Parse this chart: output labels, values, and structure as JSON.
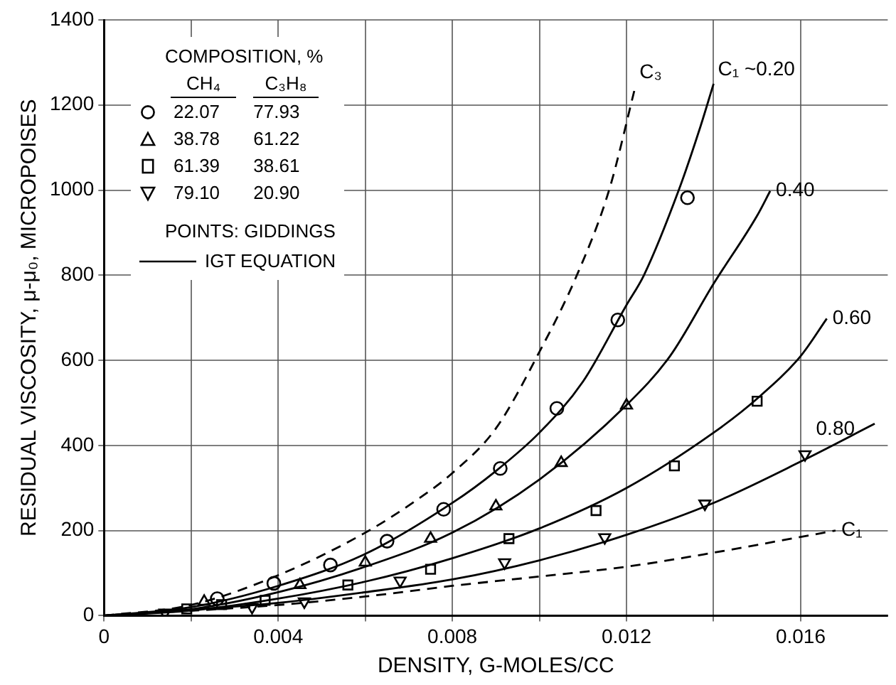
{
  "chart_data": {
    "type": "scatter",
    "xlabel": "DENSITY, G-MOLES/CC",
    "ylabel": "RESIDUAL VISCOSITY, μ-μ₀, MICROPOISES",
    "legend_title": "COMPOSITION, %",
    "annotations": [
      "CH₄",
      "C₃H₈",
      "POINTS: GIDDINGS",
      "IGT EQUATION"
    ],
    "xlim": [
      0,
      0.018
    ],
    "xticks": [
      0,
      {
        "value": 0.002,
        "label": null
      },
      0.004,
      {
        "value": 0.006,
        "label": null
      },
      0.008,
      {
        "value": 0.01,
        "label": null
      },
      0.012,
      {
        "value": 0.014,
        "label": null
      },
      0.016
    ],
    "ylim": [
      0,
      1400
    ],
    "yticks": [
      0,
      200,
      400,
      600,
      800,
      1000,
      1200,
      1400
    ],
    "grid": true,
    "legend": "top left",
    "series": [
      {
        "name": "22.07 77.93",
        "type": "scatter",
        "marker": "circle",
        "color": "#000000",
        "x": [
          0.0026,
          0.0039,
          0.0052,
          0.0065,
          0.0078,
          0.0091,
          0.0104,
          0.0118,
          0.0134
        ],
        "values": [
          40,
          76,
          119,
          175,
          250,
          346,
          487,
          695,
          982
        ]
      },
      {
        "name": "38.78 61.22",
        "type": "scatter",
        "marker": "triangle",
        "color": "#000000",
        "x": [
          0.0023,
          0.0045,
          0.006,
          0.0075,
          0.009,
          0.0105,
          0.012
        ],
        "values": [
          33,
          72,
          125,
          181,
          257,
          359,
          494
        ]
      },
      {
        "name": "61.39 38.61",
        "type": "scatter",
        "marker": "square",
        "color": "#000000",
        "x": [
          0.0019,
          0.0027,
          0.0037,
          0.0056,
          0.0075,
          0.0093,
          0.0113,
          0.0131,
          0.015
        ],
        "values": [
          16,
          26,
          36,
          72,
          109,
          181,
          247,
          352,
          504
        ]
      },
      {
        "name": "79.10 20.90",
        "type": "scatter",
        "marker": "triangle-down",
        "color": "#000000",
        "x": [
          0.0014,
          0.0034,
          0.0046,
          0.0068,
          0.0092,
          0.0115,
          0.0138,
          0.0161
        ],
        "values": [
          7,
          20,
          33,
          82,
          125,
          184,
          263,
          379
        ]
      },
      {
        "name": "C₁ ~0.20",
        "type": "line",
        "line_style": "solid",
        "marker": "none",
        "color": "#000000",
        "x": [
          0,
          0.002,
          0.004,
          0.006,
          0.008,
          0.009,
          0.01,
          0.011,
          0.012,
          0.0124,
          0.0132,
          0.0137,
          0.014
        ],
        "values": [
          0,
          20,
          70,
          145,
          265,
          340,
          430,
          550,
          730,
          800,
          1000,
          1150,
          1250
        ]
      },
      {
        "name": "0.40",
        "type": "line",
        "line_style": "solid",
        "marker": "none",
        "color": "#000000",
        "x": [
          0,
          0.002,
          0.004,
          0.006,
          0.008,
          0.01,
          0.012,
          0.013,
          0.014,
          0.015,
          0.0153
        ],
        "values": [
          0,
          15,
          55,
          115,
          195,
          320,
          495,
          610,
          780,
          940,
          998
        ]
      },
      {
        "name": "0.60",
        "type": "line",
        "line_style": "solid",
        "marker": "none",
        "color": "#000000",
        "x": [
          0,
          0.002,
          0.004,
          0.006,
          0.008,
          0.01,
          0.012,
          0.014,
          0.015,
          0.016,
          0.0166
        ],
        "values": [
          0,
          12,
          40,
          80,
          135,
          205,
          300,
          430,
          510,
          610,
          698
        ]
      },
      {
        "name": "0.80",
        "type": "line",
        "line_style": "solid",
        "marker": "none",
        "color": "#000000",
        "x": [
          0,
          0.004,
          0.006,
          0.008,
          0.01,
          0.012,
          0.014,
          0.016,
          0.0177
        ],
        "values": [
          0,
          30,
          55,
          85,
          130,
          190,
          265,
          362,
          451
        ]
      },
      {
        "name": "C₃",
        "type": "line",
        "line_style": "dashed",
        "marker": "none",
        "color": "#000000",
        "x": [
          0,
          0.002,
          0.004,
          0.006,
          0.0072,
          0.008,
          0.009,
          0.01,
          0.01086,
          0.0116,
          0.0122
        ],
        "values": [
          0,
          25,
          95,
          195,
          273,
          335,
          440,
          620,
          800,
          1000,
          1242
        ]
      },
      {
        "name": "C₁",
        "type": "line",
        "line_style": "dashed",
        "marker": "none",
        "color": "#000000",
        "x": [
          0,
          0.004,
          0.006,
          0.008,
          0.01,
          0.012,
          0.014,
          0.016,
          0.0168
        ],
        "values": [
          0,
          25,
          45,
          70,
          92,
          115,
          148,
          185,
          200
        ]
      }
    ]
  }
}
